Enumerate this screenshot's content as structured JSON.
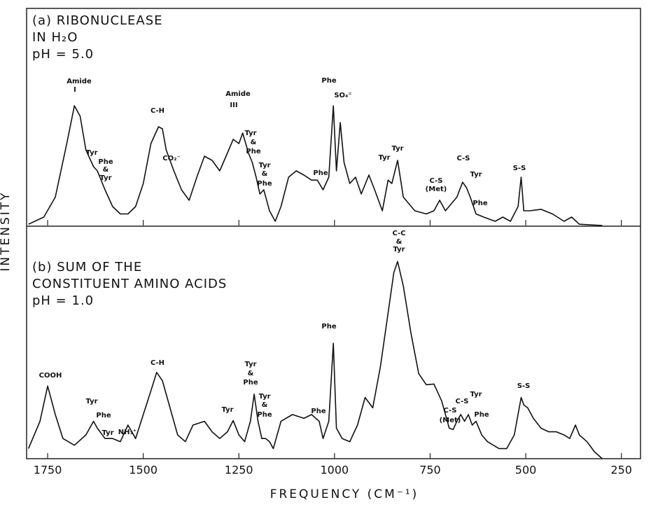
{
  "chart_data": [
    {
      "type": "line",
      "title_lines": [
        "(a) RIBONUCLEASE",
        "IN H₂O",
        "pH = 5.0"
      ],
      "ylabel": "INTENSITY",
      "xlim": [
        1805,
        200
      ],
      "ylim": [
        0,
        100
      ],
      "color": "#111",
      "x": [
        1800,
        1760,
        1730,
        1700,
        1680,
        1665,
        1650,
        1630,
        1620,
        1600,
        1580,
        1560,
        1540,
        1520,
        1500,
        1480,
        1460,
        1450,
        1440,
        1420,
        1400,
        1380,
        1360,
        1340,
        1320,
        1300,
        1280,
        1265,
        1250,
        1240,
        1225,
        1215,
        1205,
        1195,
        1185,
        1170,
        1155,
        1140,
        1120,
        1100,
        1080,
        1060,
        1045,
        1030,
        1015,
        1003,
        995,
        985,
        975,
        960,
        945,
        930,
        910,
        895,
        875,
        860,
        850,
        835,
        820,
        790,
        760,
        740,
        725,
        710,
        680,
        665,
        655,
        645,
        630,
        610,
        580,
        560,
        540,
        520,
        512,
        505,
        490,
        460,
        430,
        400,
        380,
        360,
        300
      ],
      "values": [
        0.6,
        4,
        13.5,
        39,
        57,
        52,
        36,
        28,
        26,
        17,
        9,
        5.5,
        5.5,
        9,
        20,
        39,
        47,
        46,
        36,
        26,
        17,
        12,
        23,
        33,
        31,
        26,
        34.5,
        41,
        39,
        44,
        34.5,
        30,
        23,
        15,
        17,
        7,
        2,
        9,
        23,
        26,
        24,
        21.6,
        21.6,
        17,
        23,
        57,
        26,
        49,
        30,
        20,
        23,
        15,
        24,
        17,
        7,
        21.6,
        20,
        31,
        13.5,
        7,
        5.5,
        7,
        12,
        7,
        13.5,
        20.6,
        18,
        13.5,
        5.5,
        4,
        2,
        4,
        2,
        9,
        23,
        7,
        7,
        7.7,
        5.5,
        2,
        4,
        0.6,
        0
      ],
      "annotations": [
        "Amide",
        "I",
        "C-H",
        "Tyr",
        "Phe",
        "&",
        "Tyr",
        "CO₂⁻",
        "Amide",
        "III",
        "Tyr",
        "&",
        "Phe",
        "Tyr",
        "&",
        "Phe",
        "Phe",
        "Phe",
        "SO₄⁼",
        "Tyr",
        "Tyr",
        "C-S",
        "(Met)",
        "C-S",
        "Tyr",
        "Phe",
        "S-S"
      ]
    },
    {
      "type": "line",
      "title_lines": [
        "(b) SUM OF THE",
        "CONSTITUENT AMINO ACIDS",
        "pH = 1.0"
      ],
      "xlabel": "FREQUENCY (CM⁻¹)",
      "xlim": [
        1805,
        200
      ],
      "ylim": [
        0,
        100
      ],
      "color": "#111",
      "xticks": [
        1750,
        1500,
        1250,
        1000,
        750,
        500,
        250
      ],
      "x": [
        1800,
        1770,
        1750,
        1730,
        1710,
        1680,
        1650,
        1630,
        1620,
        1600,
        1580,
        1560,
        1540,
        1520,
        1500,
        1480,
        1465,
        1450,
        1430,
        1410,
        1390,
        1370,
        1340,
        1320,
        1300,
        1280,
        1265,
        1250,
        1235,
        1220,
        1210,
        1200,
        1190,
        1180,
        1170,
        1160,
        1140,
        1110,
        1080,
        1060,
        1040,
        1030,
        1015,
        1003,
        995,
        980,
        960,
        940,
        920,
        900,
        880,
        860,
        845,
        835,
        820,
        800,
        780,
        760,
        740,
        720,
        700,
        690,
        680,
        670,
        660,
        650,
        640,
        630,
        615,
        600,
        570,
        550,
        530,
        512,
        505,
        495,
        480,
        460,
        440,
        420,
        400,
        385,
        370,
        360,
        340,
        320,
        300
      ],
      "values": [
        4.5,
        16.7,
        32.4,
        19.7,
        9,
        6,
        10.6,
        16.7,
        13.6,
        9,
        9,
        7.6,
        15,
        9,
        19.7,
        30.3,
        38.5,
        34.8,
        22.7,
        10.6,
        7.6,
        15,
        16.7,
        12,
        9,
        12,
        17,
        10.6,
        7.6,
        16.7,
        28.8,
        16.7,
        9,
        9,
        7.6,
        4.5,
        16.7,
        19.7,
        18,
        19.7,
        16.7,
        9,
        16.7,
        51.5,
        13.6,
        9,
        7.6,
        15,
        27.3,
        22.7,
        41,
        65,
        83,
        88,
        77,
        56,
        38,
        33,
        33.3,
        25.8,
        13.6,
        13,
        16.7,
        19.7,
        16.7,
        19.7,
        15,
        16.7,
        10.6,
        7.6,
        4.5,
        4.5,
        10.6,
        27.3,
        24,
        22.7,
        18,
        13.6,
        12,
        12,
        10.6,
        9,
        15,
        10.6,
        7.6,
        3,
        0
      ],
      "annotations": [
        "C-C",
        "&",
        "Tyr",
        "COOH",
        "Tyr",
        "Phe",
        "Tyr",
        "NH₃⁺",
        "C-H",
        "Tyr",
        "Tyr",
        "&",
        "Phe",
        "Tyr",
        "&",
        "Phe",
        "Phe",
        "Phe",
        "C-S",
        "(Met)",
        "C-S",
        "Tyr",
        "Phe",
        "S-S"
      ]
    }
  ]
}
